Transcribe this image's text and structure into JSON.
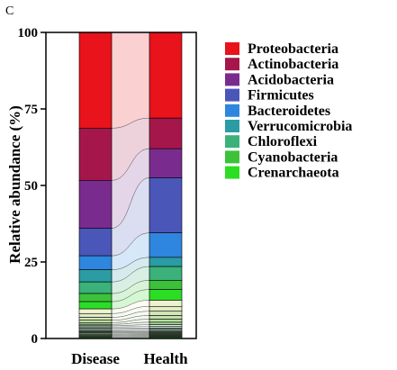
{
  "panel_label": "C",
  "chart_data": {
    "type": "bar",
    "subtype": "stacked-100-percent-with-flow-bands",
    "title": "",
    "xlabel": "",
    "ylabel": "Relative abundance (%)",
    "ylim": [
      0,
      100
    ],
    "yticks": [
      "0",
      "25",
      "50",
      "75",
      "100"
    ],
    "categories": [
      "Disease",
      "Health"
    ],
    "legend_position": "right",
    "series": [
      {
        "name": "Proteobacteria",
        "color": "#e8131b",
        "values": [
          33.0,
          28.0
        ]
      },
      {
        "name": "Actinobacteria",
        "color": "#a5174a",
        "values": [
          18.0,
          10.0
        ]
      },
      {
        "name": "Acidobacteria",
        "color": "#7a2c8e",
        "values": [
          16.5,
          9.5
        ]
      },
      {
        "name": "Firmicutes",
        "color": "#4a56b8",
        "values": [
          9.5,
          18.0
        ]
      },
      {
        "name": "Bacteroidetes",
        "color": "#2e86de",
        "values": [
          4.8,
          8.0
        ]
      },
      {
        "name": "Verrucomicrobia",
        "color": "#2b9ca3",
        "values": [
          4.2,
          3.0
        ]
      },
      {
        "name": "Chloroflexi",
        "color": "#3ab27a",
        "values": [
          4.0,
          4.5
        ]
      },
      {
        "name": "Cyanobacteria",
        "color": "#3cc23a",
        "values": [
          2.8,
          3.0
        ]
      },
      {
        "name": "Crenarchaeota",
        "color": "#2bde24",
        "values": [
          2.5,
          3.5
        ]
      },
      {
        "values": [
          1.6,
          2.0
        ]
      },
      {
        "values": [
          1.3,
          1.6
        ]
      },
      {
        "values": [
          1.0,
          1.4
        ]
      },
      {
        "values": [
          0.8,
          1.2
        ]
      },
      {
        "values": [
          0.6,
          1.0
        ]
      },
      {
        "values": [
          0.5,
          0.8
        ]
      },
      {
        "values": [
          0.4,
          0.6
        ]
      },
      {
        "values": [
          0.5,
          0.5
        ]
      },
      {
        "values": [
          0.4,
          0.4
        ]
      },
      {
        "values": [
          0.4,
          0.4
        ]
      },
      {
        "values": [
          0.4,
          0.4
        ]
      },
      {
        "values": [
          0.3,
          0.3
        ]
      },
      {
        "values": [
          0.4,
          0.3
        ]
      },
      {
        "values": [
          0.3,
          0.3
        ]
      },
      {
        "values": [
          0.3,
          0.3
        ]
      },
      {
        "values": [
          0.3,
          0.3
        ]
      },
      {
        "values": [
          0.3,
          0.3
        ]
      },
      {
        "values": [
          0.4,
          0.4
        ]
      }
    ]
  }
}
